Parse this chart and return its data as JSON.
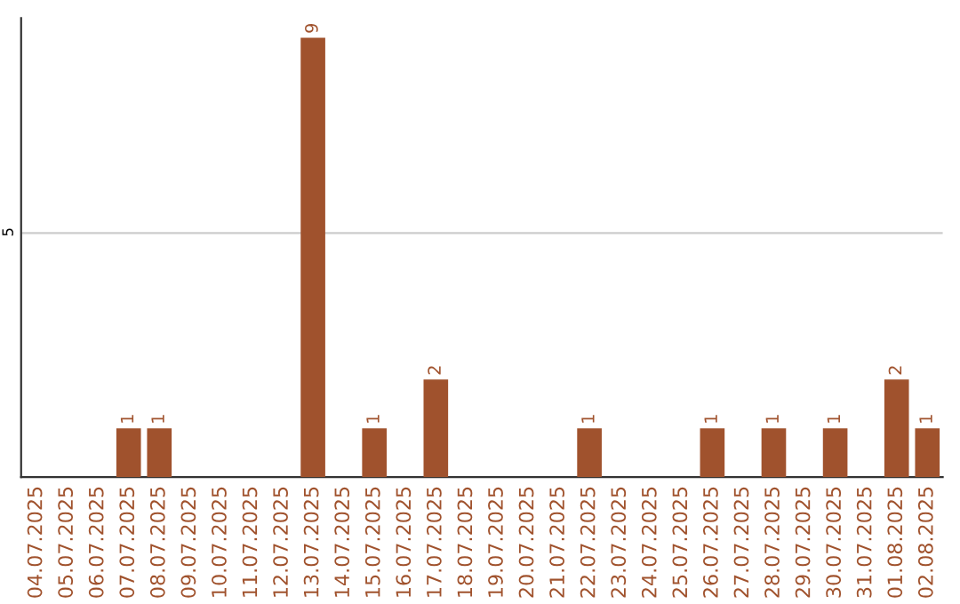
{
  "chart_data": {
    "type": "bar",
    "categories": [
      "04.07.2025",
      "05.07.2025",
      "06.07.2025",
      "07.07.2025",
      "08.07.2025",
      "09.07.2025",
      "10.07.2025",
      "11.07.2025",
      "12.07.2025",
      "13.07.2025",
      "14.07.2025",
      "15.07.2025",
      "16.07.2025",
      "17.07.2025",
      "18.07.2025",
      "19.07.2025",
      "20.07.2025",
      "21.07.2025",
      "22.07.2025",
      "23.07.2025",
      "24.07.2025",
      "25.07.2025",
      "26.07.2025",
      "27.07.2025",
      "28.07.2025",
      "29.07.2025",
      "30.07.2025",
      "31.07.2025",
      "01.08.2025",
      "02.08.2025"
    ],
    "values": [
      0,
      0,
      0,
      1,
      1,
      0,
      0,
      0,
      0,
      9,
      0,
      1,
      0,
      2,
      0,
      0,
      0,
      0,
      1,
      0,
      0,
      0,
      1,
      0,
      1,
      0,
      1,
      0,
      2,
      1
    ],
    "value_labels": [
      null,
      null,
      null,
      "1",
      "1",
      null,
      null,
      null,
      null,
      "9",
      null,
      "1",
      null,
      "2",
      null,
      null,
      null,
      null,
      "1",
      null,
      null,
      null,
      "1",
      null,
      "1",
      null,
      "1",
      null,
      "2",
      "1"
    ],
    "color": "#a0522d",
    "ylim": [
      0,
      9.4
    ],
    "yticks": [
      5
    ],
    "grid": "y"
  }
}
